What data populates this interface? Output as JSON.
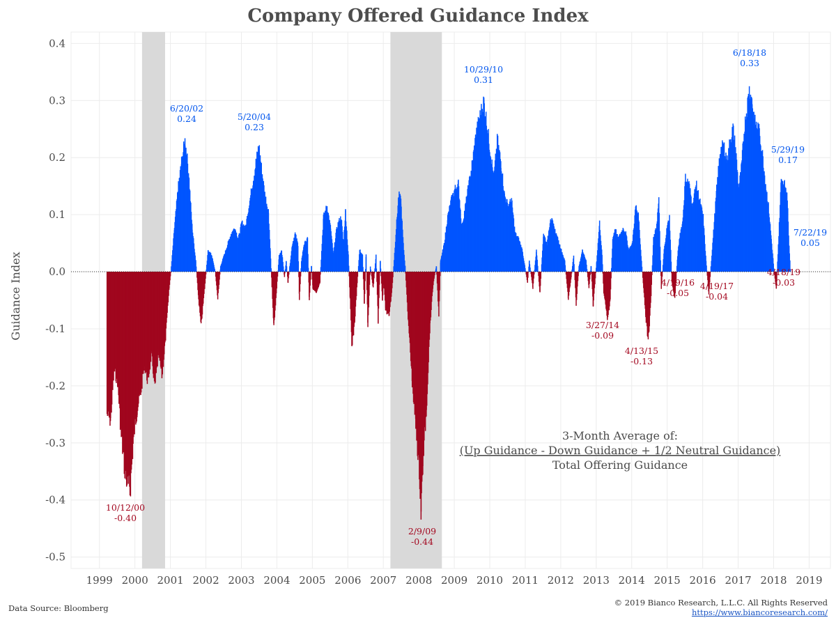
{
  "title": "Company Offered Guidance Index",
  "footer": {
    "source": "Data Source: Bloomberg",
    "copyright": "© 2019 Bianco Research, L.L.C. All Rights Reserved",
    "url": "https://www.biancoresearch.com/"
  },
  "formula": {
    "line1": "3-Month Average of:",
    "line2": "(Up Guidance - Down Guidance + 1/2 Neutral Guidance)",
    "line3": "Total Offering Guidance"
  },
  "colors": {
    "positive": "#0055ff",
    "negative": "#a0061e",
    "recession": "#d9d9d9",
    "grid": "#ececec"
  },
  "chart_data": {
    "type": "area",
    "title": "Company Offered Guidance Index",
    "ylabel": "Guidance Index",
    "xlabel": "",
    "ylim": [
      -0.52,
      0.42
    ],
    "xlim": [
      1998.2,
      2019.6
    ],
    "yticks": [
      "0.4",
      "0.3",
      "0.2",
      "0.1",
      "0.0",
      "-0.1",
      "-0.2",
      "-0.3",
      "-0.4",
      "-0.5"
    ],
    "ytick_values": [
      0.4,
      0.3,
      0.2,
      0.1,
      0.0,
      -0.1,
      -0.2,
      -0.3,
      -0.4,
      -0.5
    ],
    "xticks": [
      "1999",
      "2000",
      "2001",
      "2002",
      "2003",
      "2004",
      "2005",
      "2006",
      "2007",
      "2008",
      "2009",
      "2010",
      "2011",
      "2012",
      "2013",
      "2014",
      "2015",
      "2016",
      "2017",
      "2018",
      "2019"
    ],
    "xtick_values": [
      1999,
      2000,
      2001,
      2002,
      2003,
      2004,
      2005,
      2006,
      2007,
      2008,
      2009,
      2010,
      2011,
      2012,
      2013,
      2014,
      2015,
      2016,
      2017,
      2018,
      2019
    ],
    "grid": true,
    "recessions": [
      [
        2000.2,
        2000.85
      ],
      [
        2007.2,
        2008.65
      ]
    ],
    "series": [
      {
        "points": [
          [
            1999.2,
            -0.26
          ],
          [
            1999.3,
            -0.27
          ],
          [
            1999.4,
            -0.18
          ],
          [
            1999.5,
            -0.2
          ],
          [
            1999.6,
            -0.3
          ],
          [
            1999.7,
            -0.36
          ],
          [
            1999.75,
            -0.38
          ],
          [
            1999.85,
            -0.4
          ],
          [
            1999.95,
            -0.3
          ],
          [
            2000.05,
            -0.25
          ],
          [
            2000.15,
            -0.22
          ],
          [
            2000.25,
            -0.17
          ],
          [
            2000.35,
            -0.2
          ],
          [
            2000.45,
            -0.15
          ],
          [
            2000.55,
            -0.21
          ],
          [
            2000.65,
            -0.15
          ],
          [
            2000.75,
            -0.19
          ],
          [
            2000.85,
            -0.12
          ],
          [
            2000.95,
            -0.03
          ],
          [
            2001.0,
            0.0
          ],
          [
            2001.1,
            0.08
          ],
          [
            2001.2,
            0.15
          ],
          [
            2001.3,
            0.2
          ],
          [
            2001.4,
            0.24
          ],
          [
            2001.5,
            0.18
          ],
          [
            2001.6,
            0.08
          ],
          [
            2001.7,
            0.02
          ],
          [
            2001.78,
            -0.05
          ],
          [
            2001.85,
            -0.1
          ],
          [
            2001.95,
            -0.03
          ],
          [
            2002.05,
            0.04
          ],
          [
            2002.15,
            0.03
          ],
          [
            2002.25,
            0.0
          ],
          [
            2002.32,
            -0.05
          ],
          [
            2002.4,
            0.01
          ],
          [
            2002.5,
            0.03
          ],
          [
            2002.6,
            0.05
          ],
          [
            2002.7,
            0.07
          ],
          [
            2002.8,
            0.08
          ],
          [
            2002.9,
            0.06
          ],
          [
            2003.0,
            0.09
          ],
          [
            2003.1,
            0.08
          ],
          [
            2003.2,
            0.12
          ],
          [
            2003.3,
            0.16
          ],
          [
            2003.4,
            0.2
          ],
          [
            2003.48,
            0.23
          ],
          [
            2003.55,
            0.19
          ],
          [
            2003.65,
            0.14
          ],
          [
            2003.75,
            0.11
          ],
          [
            2003.8,
            0.04
          ],
          [
            2003.85,
            -0.03
          ],
          [
            2003.9,
            -0.1
          ],
          [
            2003.97,
            -0.04
          ],
          [
            2004.05,
            0.03
          ],
          [
            2004.12,
            0.04
          ],
          [
            2004.2,
            -0.01
          ],
          [
            2004.25,
            0.02
          ],
          [
            2004.3,
            -0.02
          ],
          [
            2004.35,
            0.01
          ],
          [
            2004.42,
            0.05
          ],
          [
            2004.5,
            0.07
          ],
          [
            2004.58,
            0.05
          ],
          [
            2004.62,
            -0.05
          ],
          [
            2004.68,
            0.02
          ],
          [
            2004.75,
            0.05
          ],
          [
            2004.85,
            0.06
          ],
          [
            2004.9,
            -0.05
          ],
          [
            2004.96,
            0.01
          ],
          [
            2005.0,
            -0.03
          ],
          [
            2005.1,
            -0.04
          ],
          [
            2005.2,
            -0.02
          ],
          [
            2005.3,
            0.1
          ],
          [
            2005.4,
            0.12
          ],
          [
            2005.5,
            0.08
          ],
          [
            2005.58,
            0.03
          ],
          [
            2005.65,
            0.07
          ],
          [
            2005.72,
            0.09
          ],
          [
            2005.8,
            0.1
          ],
          [
            2005.86,
            0.05
          ],
          [
            2005.92,
            0.11
          ],
          [
            2006.0,
            0.03
          ],
          [
            2006.05,
            -0.05
          ],
          [
            2006.1,
            -0.14
          ],
          [
            2006.18,
            -0.09
          ],
          [
            2006.25,
            -0.02
          ],
          [
            2006.32,
            0.04
          ],
          [
            2006.4,
            0.03
          ],
          [
            2006.45,
            -0.06
          ],
          [
            2006.5,
            0.03
          ],
          [
            2006.55,
            -0.1
          ],
          [
            2006.62,
            0.01
          ],
          [
            2006.7,
            -0.03
          ],
          [
            2006.78,
            0.03
          ],
          [
            2006.84,
            -0.09
          ],
          [
            2006.9,
            0.02
          ],
          [
            2006.96,
            -0.05
          ],
          [
            2007.0,
            -0.02
          ],
          [
            2007.05,
            -0.07
          ],
          [
            2007.15,
            -0.08
          ],
          [
            2007.22,
            -0.04
          ],
          [
            2007.28,
            0.01
          ],
          [
            2007.35,
            0.08
          ],
          [
            2007.42,
            0.14
          ],
          [
            2007.48,
            0.13
          ],
          [
            2007.55,
            0.05
          ],
          [
            2007.6,
            0.01
          ],
          [
            2007.7,
            -0.1
          ],
          [
            2007.8,
            -0.2
          ],
          [
            2007.9,
            -0.28
          ],
          [
            2008.0,
            -0.36
          ],
          [
            2008.05,
            -0.44
          ],
          [
            2008.1,
            -0.35
          ],
          [
            2008.2,
            -0.25
          ],
          [
            2008.3,
            -0.1
          ],
          [
            2008.38,
            -0.03
          ],
          [
            2008.42,
            -0.01
          ],
          [
            2008.48,
            0.01
          ],
          [
            2008.55,
            -0.08
          ],
          [
            2008.6,
            0.02
          ],
          [
            2008.7,
            0.05
          ],
          [
            2008.8,
            0.1
          ],
          [
            2008.9,
            0.13
          ],
          [
            2009.0,
            0.15
          ],
          [
            2009.1,
            0.16
          ],
          [
            2009.2,
            0.08
          ],
          [
            2009.3,
            0.12
          ],
          [
            2009.4,
            0.16
          ],
          [
            2009.5,
            0.2
          ],
          [
            2009.6,
            0.25
          ],
          [
            2009.7,
            0.28
          ],
          [
            2009.82,
            0.31
          ],
          [
            2009.9,
            0.27
          ],
          [
            2010.0,
            0.22
          ],
          [
            2010.1,
            0.17
          ],
          [
            2010.2,
            0.24
          ],
          [
            2010.3,
            0.2
          ],
          [
            2010.4,
            0.14
          ],
          [
            2010.5,
            0.12
          ],
          [
            2010.6,
            0.13
          ],
          [
            2010.7,
            0.07
          ],
          [
            2010.8,
            0.06
          ],
          [
            2010.9,
            0.04
          ],
          [
            2011.0,
            0.0
          ],
          [
            2011.05,
            -0.02
          ],
          [
            2011.1,
            0.02
          ],
          [
            2011.2,
            -0.03
          ],
          [
            2011.3,
            0.04
          ],
          [
            2011.4,
            -0.04
          ],
          [
            2011.5,
            0.07
          ],
          [
            2011.6,
            0.05
          ],
          [
            2011.7,
            0.1
          ],
          [
            2011.8,
            0.08
          ],
          [
            2011.9,
            0.06
          ],
          [
            2012.0,
            0.04
          ],
          [
            2012.1,
            0.02
          ],
          [
            2012.2,
            -0.05
          ],
          [
            2012.28,
            -0.01
          ],
          [
            2012.35,
            0.03
          ],
          [
            2012.42,
            -0.06
          ],
          [
            2012.5,
            0.01
          ],
          [
            2012.6,
            0.04
          ],
          [
            2012.7,
            0.02
          ],
          [
            2012.78,
            -0.03
          ],
          [
            2012.84,
            0.01
          ],
          [
            2012.9,
            -0.06
          ],
          [
            2013.0,
            0.02
          ],
          [
            2013.08,
            0.09
          ],
          [
            2013.15,
            0.03
          ],
          [
            2013.2,
            -0.04
          ],
          [
            2013.25,
            -0.06
          ],
          [
            2013.3,
            -0.09
          ],
          [
            2013.38,
            -0.05
          ],
          [
            2013.45,
            0.06
          ],
          [
            2013.52,
            0.08
          ],
          [
            2013.6,
            0.06
          ],
          [
            2013.68,
            0.07
          ],
          [
            2013.75,
            0.08
          ],
          [
            2013.82,
            0.07
          ],
          [
            2013.9,
            0.04
          ],
          [
            2014.0,
            0.05
          ],
          [
            2014.1,
            0.12
          ],
          [
            2014.18,
            0.1
          ],
          [
            2014.25,
            0.03
          ],
          [
            2014.32,
            -0.03
          ],
          [
            2014.38,
            -0.08
          ],
          [
            2014.45,
            -0.13
          ],
          [
            2014.52,
            -0.06
          ],
          [
            2014.6,
            0.06
          ],
          [
            2014.68,
            0.08
          ],
          [
            2014.75,
            0.13
          ],
          [
            2014.82,
            -0.03
          ],
          [
            2014.9,
            0.04
          ],
          [
            2014.98,
            0.08
          ],
          [
            2015.05,
            0.1
          ],
          [
            2015.12,
            -0.02
          ],
          [
            2015.2,
            -0.05
          ],
          [
            2015.28,
            0.03
          ],
          [
            2015.35,
            0.07
          ],
          [
            2015.42,
            0.09
          ],
          [
            2015.5,
            0.17
          ],
          [
            2015.6,
            0.16
          ],
          [
            2015.7,
            0.12
          ],
          [
            2015.8,
            0.16
          ],
          [
            2015.9,
            0.13
          ],
          [
            2016.0,
            0.1
          ],
          [
            2016.08,
            0.02
          ],
          [
            2016.16,
            -0.04
          ],
          [
            2016.22,
            0.01
          ],
          [
            2016.3,
            0.08
          ],
          [
            2016.38,
            0.15
          ],
          [
            2016.48,
            0.22
          ],
          [
            2016.58,
            0.23
          ],
          [
            2016.68,
            0.2
          ],
          [
            2016.76,
            0.24
          ],
          [
            2016.84,
            0.26
          ],
          [
            2016.92,
            0.22
          ],
          [
            2017.0,
            0.15
          ],
          [
            2017.08,
            0.19
          ],
          [
            2017.16,
            0.26
          ],
          [
            2017.24,
            0.3
          ],
          [
            2017.3,
            0.33
          ],
          [
            2017.38,
            0.31
          ],
          [
            2017.46,
            0.27
          ],
          [
            2017.56,
            0.26
          ],
          [
            2017.66,
            0.22
          ],
          [
            2017.76,
            0.16
          ],
          [
            2017.84,
            0.12
          ],
          [
            2017.92,
            0.06
          ],
          [
            2018.0,
            0.0
          ],
          [
            2018.06,
            -0.03
          ],
          [
            2018.12,
            0.05
          ],
          [
            2018.2,
            0.17
          ],
          [
            2018.28,
            0.16
          ],
          [
            2018.36,
            0.15
          ],
          [
            2018.42,
            0.05
          ],
          [
            2018.46,
            0.0
          ]
        ]
      }
    ],
    "annotations": [
      {
        "date": "10/12/00",
        "value": "-0.40",
        "sign": "neg"
      },
      {
        "date": "6/20/02",
        "value": "0.24",
        "sign": "pos"
      },
      {
        "date": "5/20/04",
        "value": "0.23",
        "sign": "pos"
      },
      {
        "date": "2/9/09",
        "value": "-0.44",
        "sign": "neg"
      },
      {
        "date": "10/29/10",
        "value": "0.31",
        "sign": "pos"
      },
      {
        "date": "3/27/14",
        "value": "-0.09",
        "sign": "neg"
      },
      {
        "date": "4/13/15",
        "value": "-0.13",
        "sign": "neg"
      },
      {
        "date": "4/19/16",
        "value": "-0.05",
        "sign": "neg"
      },
      {
        "date": "4/19/17",
        "value": "-0.04",
        "sign": "neg"
      },
      {
        "date": "6/18/18",
        "value": "0.33",
        "sign": "pos"
      },
      {
        "date": "5/29/19",
        "value": "0.17",
        "sign": "pos"
      },
      {
        "date": "4/18/19",
        "value": "-0.03",
        "sign": "neg"
      },
      {
        "date": "7/22/19",
        "value": "0.05",
        "sign": "pos"
      }
    ]
  }
}
